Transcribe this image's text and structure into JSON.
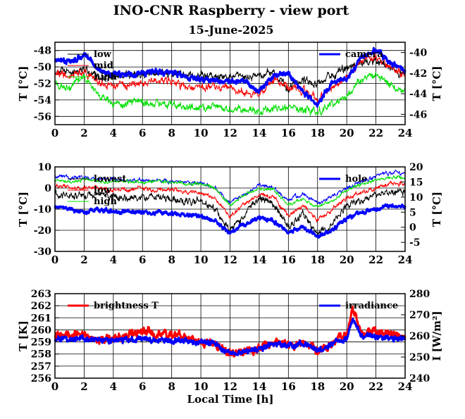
{
  "title": "INO-CNR Raspberry - view port",
  "subtitle": "15-June-2025",
  "xlabel_bottom": "Local Time [h]",
  "colors": {
    "black": "#000000",
    "red": "#ff0000",
    "green": "#00e000",
    "blue": "#0000ff"
  },
  "chart_data": [
    {
      "type": "line",
      "xlim": [
        0,
        24
      ],
      "xticks": [
        0,
        2,
        4,
        6,
        8,
        10,
        12,
        14,
        16,
        18,
        20,
        22,
        24
      ],
      "ylabel": "T [°C]",
      "ylim": [
        -57,
        -47
      ],
      "yticks": [
        -56,
        -54,
        -52,
        -50,
        -48
      ],
      "ylabel_right": "T [°C]",
      "ylim_right": [
        -47,
        -39
      ],
      "yticks_right": [
        -46,
        -44,
        -42,
        -40
      ],
      "grid": true,
      "legend_left": [
        "low",
        "mid",
        "high"
      ],
      "legend_right": [
        "camera"
      ],
      "series": [
        {
          "name": "low",
          "color": "#000000",
          "axis": "left",
          "x": [
            0,
            1,
            2,
            3,
            4,
            5,
            6,
            7,
            8,
            9,
            10,
            11,
            12,
            13,
            14,
            15,
            16,
            17,
            18,
            19,
            20,
            21,
            22,
            23,
            24
          ],
          "y": [
            -50.5,
            -50.6,
            -50.2,
            -51.3,
            -51.2,
            -51.0,
            -51.1,
            -50.6,
            -50.8,
            -51.0,
            -51.0,
            -51.1,
            -51.2,
            -51.3,
            -51.0,
            -50.7,
            -52.8,
            -51.5,
            -52.0,
            -51.0,
            -50.2,
            -49.5,
            -49.2,
            -50.3,
            -50.8
          ],
          "noise": 0.35
        },
        {
          "name": "mid",
          "color": "#ff0000",
          "axis": "left",
          "x": [
            0,
            1,
            2,
            3,
            4,
            5,
            6,
            7,
            8,
            9,
            10,
            11,
            12,
            13,
            14,
            15,
            16,
            17,
            18,
            19,
            20,
            21,
            22,
            23,
            24
          ],
          "y": [
            -50.6,
            -51.2,
            -50.5,
            -52.0,
            -52.3,
            -52.1,
            -51.8,
            -51.6,
            -51.9,
            -52.4,
            -52.5,
            -52.4,
            -52.7,
            -53.0,
            -53.2,
            -51.5,
            -52.5,
            -52.8,
            -54.0,
            -52.5,
            -51.3,
            -49.0,
            -48.8,
            -50.0,
            -51.0
          ],
          "noise": 0.35
        },
        {
          "name": "high",
          "color": "#00e000",
          "axis": "left",
          "x": [
            0,
            1,
            2,
            3,
            4,
            5,
            6,
            7,
            8,
            9,
            10,
            11,
            12,
            13,
            14,
            15,
            16,
            17,
            18,
            19,
            20,
            21,
            22,
            23,
            24
          ],
          "y": [
            -52.0,
            -52.5,
            -51.0,
            -53.5,
            -54.5,
            -54.4,
            -54.2,
            -54.3,
            -54.6,
            -54.8,
            -55.0,
            -54.9,
            -55.0,
            -55.2,
            -55.4,
            -54.8,
            -55.0,
            -55.2,
            -55.5,
            -54.6,
            -53.5,
            -51.5,
            -51.0,
            -52.2,
            -52.9
          ],
          "noise": 0.35
        },
        {
          "name": "camera",
          "color": "#0000ff",
          "axis": "right",
          "thick": true,
          "x": [
            0,
            1,
            2,
            3,
            4,
            5,
            6,
            7,
            8,
            9,
            10,
            11,
            12,
            13,
            14,
            15,
            16,
            17,
            18,
            19,
            20,
            21,
            22,
            23,
            24
          ],
          "y": [
            -40.6,
            -41.0,
            -40.2,
            -41.8,
            -42.1,
            -42.2,
            -42.0,
            -41.8,
            -42.0,
            -42.2,
            -42.6,
            -42.7,
            -42.8,
            -42.7,
            -43.8,
            -42.2,
            -42.0,
            -43.8,
            -45.2,
            -42.8,
            -42.5,
            -40.5,
            -39.8,
            -41.0,
            -41.7
          ],
          "noise": 0.2
        }
      ]
    },
    {
      "type": "line",
      "xlim": [
        0,
        24
      ],
      "xticks": [
        0,
        2,
        4,
        6,
        8,
        10,
        12,
        14,
        16,
        18,
        20,
        22,
        24
      ],
      "ylabel": "T [°C]",
      "ylim": [
        -30,
        10
      ],
      "yticks": [
        -30,
        -20,
        -10,
        0,
        10
      ],
      "ylabel_right": "T [°C]",
      "ylim_right": [
        -8,
        20
      ],
      "yticks_right": [
        -5,
        0,
        5,
        10,
        15,
        20
      ],
      "grid": true,
      "legend_left": [
        "lowest",
        "low",
        "high"
      ],
      "legend_right": [
        "hole"
      ],
      "series": [
        {
          "name": "lowest",
          "color": "#000000",
          "axis": "left",
          "x": [
            0,
            1,
            2,
            3,
            4,
            5,
            6,
            7,
            8,
            9,
            10,
            11,
            12,
            13,
            14,
            15,
            16,
            17,
            18,
            19,
            20,
            21,
            22,
            23,
            24
          ],
          "y": [
            -2,
            -3,
            -4,
            -3,
            -4,
            -5,
            -4,
            -5,
            -5,
            -6,
            -6,
            -10,
            -20,
            -12,
            -5,
            -8,
            -18,
            -12,
            -22,
            -17,
            -8,
            -6,
            -3,
            -2,
            -2
          ],
          "noise": 1.2
        },
        {
          "name": "low",
          "color": "#ff0000",
          "axis": "left",
          "x": [
            0,
            1,
            2,
            3,
            4,
            5,
            6,
            7,
            8,
            9,
            10,
            11,
            12,
            13,
            14,
            15,
            16,
            17,
            18,
            19,
            20,
            21,
            22,
            23,
            24
          ],
          "y": [
            1,
            0,
            0,
            0,
            -1,
            -1,
            0,
            -1,
            -1,
            -2,
            -2,
            -5,
            -14,
            -7,
            -3,
            -4,
            -13,
            -8,
            -15,
            -10,
            -5,
            -2,
            0,
            2,
            2
          ],
          "noise": 0.8
        },
        {
          "name": "high",
          "color": "#00e000",
          "axis": "left",
          "x": [
            0,
            1,
            2,
            3,
            4,
            5,
            6,
            7,
            8,
            9,
            10,
            11,
            12,
            13,
            14,
            15,
            16,
            17,
            18,
            19,
            20,
            21,
            22,
            23,
            24
          ],
          "y": [
            4,
            3,
            4,
            3,
            3,
            3,
            3,
            3,
            3,
            2,
            2,
            0,
            -8,
            -3,
            0,
            -1,
            -8,
            -5,
            -9,
            -6,
            -1,
            2,
            4,
            5,
            5
          ],
          "noise": 0.6
        },
        {
          "name": "hole",
          "color": "#0000ff",
          "axis": "right",
          "thick": true,
          "x": [
            0,
            1,
            2,
            3,
            4,
            5,
            6,
            7,
            8,
            9,
            10,
            11,
            12,
            13,
            14,
            15,
            16,
            17,
            18,
            19,
            20,
            21,
            22,
            23,
            24
          ],
          "y": [
            7,
            6,
            5,
            6,
            5,
            5,
            5,
            5,
            4.5,
            4.5,
            3.5,
            2,
            -2,
            1,
            3,
            2,
            -2,
            0,
            -3,
            -1,
            3,
            5,
            6,
            7,
            7
          ],
          "noise": 0.5
        }
      ],
      "extra_line": {
        "color": "#0000ff",
        "axis": "right",
        "x": [
          0,
          1,
          2,
          3,
          4,
          5,
          6,
          7,
          8,
          9,
          10,
          11,
          12,
          13,
          14,
          15,
          16,
          17,
          18,
          19,
          20,
          21,
          22,
          23,
          24
        ],
        "y": [
          17,
          16.5,
          16.5,
          16,
          16,
          15.5,
          15.5,
          15.5,
          15,
          15,
          14.5,
          13,
          8,
          11,
          14,
          13,
          9,
          11,
          8,
          10,
          13,
          15,
          17,
          18,
          18
        ],
        "noise": 0.5
      }
    },
    {
      "type": "line",
      "xlim": [
        0,
        24
      ],
      "xticks": [
        0,
        2,
        4,
        6,
        8,
        10,
        12,
        14,
        16,
        18,
        20,
        22,
        24
      ],
      "ylabel": "T [K]",
      "ylim": [
        256,
        263
      ],
      "yticks": [
        256,
        257,
        258,
        259,
        260,
        261,
        262,
        263
      ],
      "ylabel_right": "I [W/m²]",
      "ylim_right": [
        240,
        280
      ],
      "yticks_right": [
        240,
        250,
        260,
        270,
        280
      ],
      "grid": true,
      "legend_left": [
        "brightness T"
      ],
      "legend_right": [
        "irradiance"
      ],
      "series": [
        {
          "name": "brightness T",
          "color": "#ff0000",
          "axis": "left",
          "thick": true,
          "x": [
            0,
            1,
            2,
            3,
            4,
            5,
            6,
            7,
            8,
            9,
            10,
            11,
            12,
            13,
            14,
            15,
            16,
            17,
            18,
            19,
            20,
            20.4,
            21,
            22,
            23,
            24
          ],
          "y": [
            259.6,
            259.6,
            259.5,
            259.2,
            259.3,
            259.5,
            259.9,
            259.7,
            259.5,
            259.3,
            259.0,
            258.8,
            258.0,
            258.2,
            258.5,
            258.9,
            258.8,
            259.0,
            258.3,
            258.9,
            259.6,
            261.8,
            259.8,
            259.9,
            259.7,
            259.3
          ],
          "noise": 0.25
        },
        {
          "name": "irradiance",
          "color": "#0000ff",
          "axis": "right",
          "thick": true,
          "x": [
            0,
            1,
            2,
            3,
            4,
            5,
            6,
            7,
            8,
            9,
            10,
            11,
            12,
            13,
            14,
            15,
            16,
            17,
            18,
            19,
            20,
            20.4,
            21,
            22,
            23,
            24
          ],
          "y": [
            258.5,
            258.5,
            258.5,
            257.8,
            257.8,
            258.0,
            258.8,
            258.5,
            258.0,
            257.8,
            257.0,
            256.5,
            251.5,
            252.5,
            254.0,
            256.0,
            255.5,
            256.5,
            253.0,
            256.5,
            258.5,
            268.0,
            260.0,
            259.5,
            259.0,
            258.0
          ],
          "noise": 1.0
        }
      ]
    }
  ]
}
